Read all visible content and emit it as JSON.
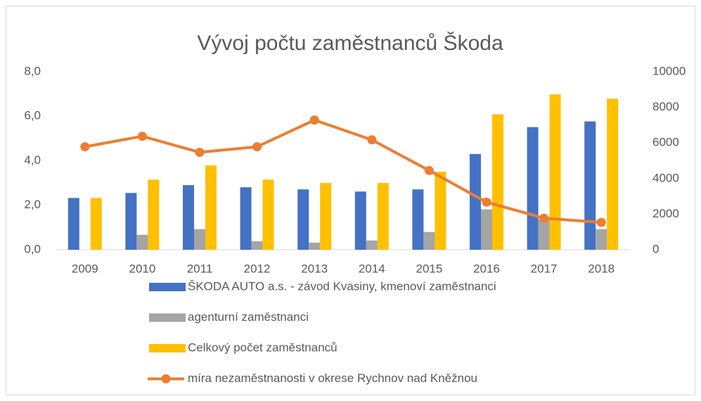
{
  "chart_data": {
    "type": "bar",
    "title": "Vývoj počtu zaměstnanců Škoda",
    "categories": [
      "2009",
      "2010",
      "2011",
      "2012",
      "2013",
      "2014",
      "2015",
      "2016",
      "2017",
      "2018"
    ],
    "series": [
      {
        "name": "ŠKODA AUTO a.s. - závod Kvasiny, kmenoví zaměstnanci",
        "color": "#4472c4",
        "type": "bar",
        "axis": "y2",
        "values": [
          2910,
          3190,
          3630,
          3510,
          3390,
          3270,
          3390,
          5380,
          6890,
          7210
        ]
      },
      {
        "name": "agenturní zaměstnanci",
        "color": "#a5a5a5",
        "type": "bar",
        "axis": "y2",
        "values": [
          null,
          840,
          1160,
          480,
          400,
          520,
          1000,
          2270,
          1710,
          1160
        ]
      },
      {
        "name": "Celkový počet zaměstnanců",
        "color": "#ffc000",
        "type": "bar",
        "axis": "y2",
        "values": [
          2910,
          3940,
          4740,
          3940,
          3750,
          3750,
          4380,
          7610,
          8730,
          8490
        ]
      },
      {
        "name": "míra nezaměstnanosti v okrese Rychnov nad Kněžnou",
        "color": "#ed7d31",
        "type": "line",
        "axis": "y",
        "values": [
          4.63,
          5.1,
          4.38,
          4.63,
          5.83,
          4.94,
          3.56,
          2.14,
          1.42,
          1.23
        ]
      }
    ],
    "ylim": [
      0,
      8
    ],
    "yticks": [
      {
        "value": 0,
        "label": "0,0"
      },
      {
        "value": 2,
        "label": "2,0"
      },
      {
        "value": 4,
        "label": "4,0"
      },
      {
        "value": 6,
        "label": "6,0"
      },
      {
        "value": 8,
        "label": "8,0"
      }
    ],
    "y2lim": [
      0,
      10000
    ],
    "y2ticks": [
      0,
      2000,
      4000,
      6000,
      8000,
      10000
    ],
    "legend": "bottom"
  }
}
